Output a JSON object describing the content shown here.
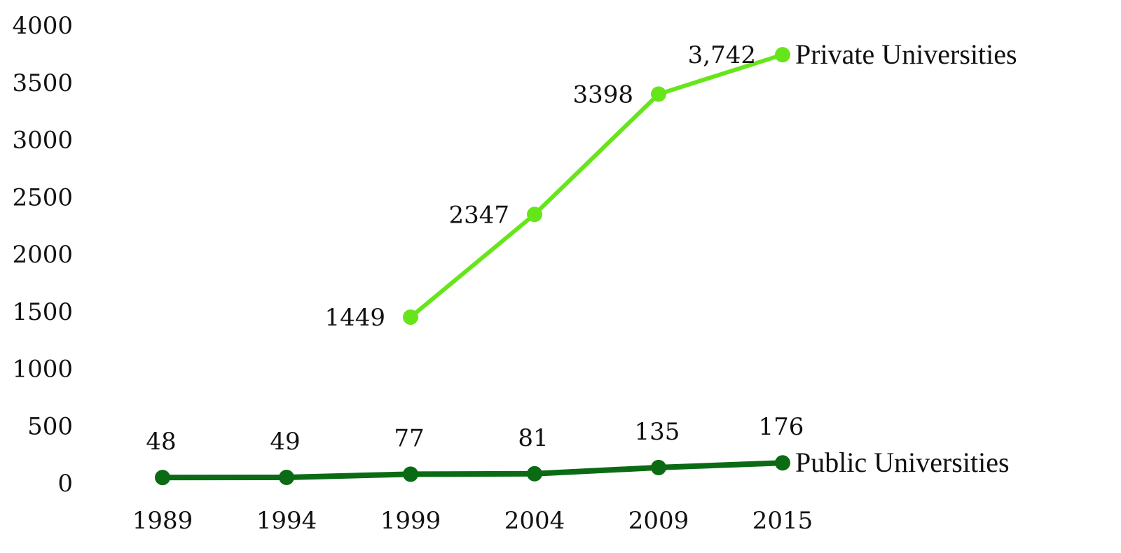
{
  "chart_data": {
    "type": "line",
    "title": "",
    "xlabel": "",
    "ylabel": "",
    "x": [
      "1989",
      "1994",
      "1999",
      "2004",
      "2009",
      "2015"
    ],
    "ylim": [
      0,
      4000
    ],
    "yticks": [
      "0",
      "500",
      "1000",
      "1500",
      "2000",
      "2500",
      "3000",
      "3500",
      "4000"
    ],
    "grid": false,
    "legend": "inline labels at line ends",
    "series": [
      {
        "name": "Private Universities",
        "color": "#66e61a",
        "points": [
          {
            "x": "1999",
            "y": 1449,
            "label": "1449"
          },
          {
            "x": "2004",
            "y": 2347,
            "label": "2347"
          },
          {
            "x": "2009",
            "y": 3398,
            "label": "3398"
          },
          {
            "x": "2015",
            "y": 3742,
            "label": "3,742"
          }
        ]
      },
      {
        "name": "Public Universities",
        "color": "#0b6b14",
        "points": [
          {
            "x": "1989",
            "y": 48,
            "label": "48"
          },
          {
            "x": "1994",
            "y": 49,
            "label": "49"
          },
          {
            "x": "1999",
            "y": 77,
            "label": "77"
          },
          {
            "x": "2004",
            "y": 81,
            "label": "81"
          },
          {
            "x": "2009",
            "y": 135,
            "label": "135"
          },
          {
            "x": "2015",
            "y": 176,
            "label": "176"
          }
        ]
      }
    ]
  }
}
